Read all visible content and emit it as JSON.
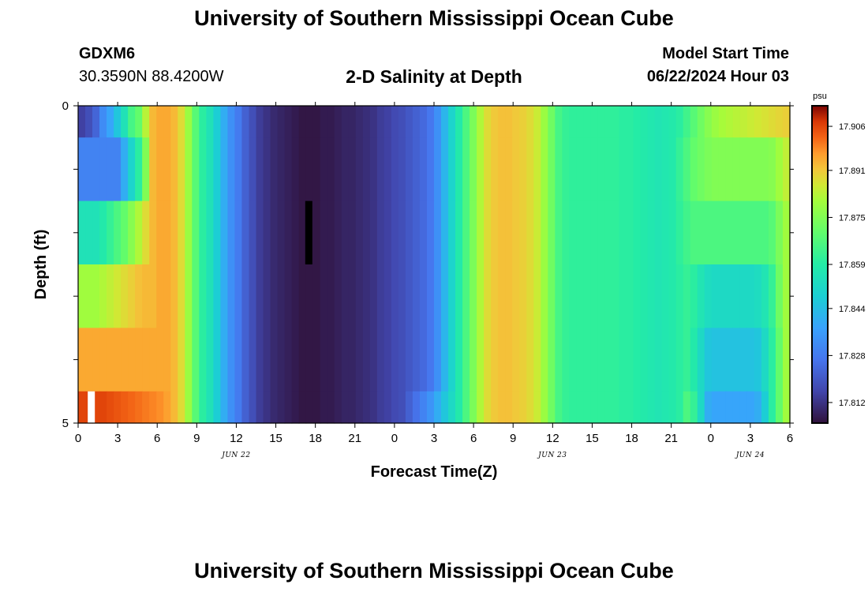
{
  "header": {
    "title": "University of Southern Mississippi Ocean Cube",
    "station": "GDXM6",
    "coords": "30.3590N  88.4200W",
    "chart_title": "2-D Salinity at Depth",
    "model_start_label": "Model Start Time",
    "model_start_value": "06/22/2024 Hour 03"
  },
  "footer": {
    "title": "University of Southern Mississippi Ocean Cube"
  },
  "chart_data": {
    "type": "heatmap",
    "title": "2-D Salinity at Depth",
    "xlabel": "Forecast Time(Z)",
    "ylabel": "Depth (ft)",
    "xlim": [
      0,
      54
    ],
    "ylim": [
      0,
      5
    ],
    "x_tick_labels": [
      "0",
      "3",
      "6",
      "9",
      "12",
      "15",
      "18",
      "21",
      "0",
      "3",
      "6",
      "9",
      "12",
      "15",
      "18",
      "21",
      "0",
      "3",
      "6"
    ],
    "x_tick_values": [
      0,
      3,
      6,
      9,
      12,
      15,
      18,
      21,
      24,
      27,
      30,
      33,
      36,
      39,
      42,
      45,
      48,
      51,
      54
    ],
    "date_labels": [
      {
        "label": "JUN 22",
        "at_hour": 12
      },
      {
        "label": "JUN 23",
        "at_hour": 36
      },
      {
        "label": "JUN 24",
        "at_hour": 51
      }
    ],
    "y_tick_labels": [
      "0",
      "5"
    ],
    "colorbar": {
      "unit": "psu",
      "min": 17.805,
      "max": 17.913,
      "tick_values": [
        17.812,
        17.828,
        17.844,
        17.859,
        17.875,
        17.891,
        17.906
      ],
      "tick_labels": [
        "17.812",
        "17.828",
        "17.844",
        "17.859",
        "17.875",
        "17.891",
        "17.906"
      ]
    },
    "depth_rows": [
      {
        "depth_ft": 0.5,
        "values": [
          17.815,
          17.818,
          17.823,
          17.832,
          17.838,
          17.846,
          17.855,
          17.865,
          17.87,
          17.883,
          17.893,
          17.895,
          17.895,
          17.893,
          17.888,
          17.879,
          17.868,
          17.86,
          17.855,
          17.848,
          17.84,
          17.833,
          17.828,
          17.822,
          17.818,
          17.814,
          17.812,
          17.81,
          17.809,
          17.808,
          17.807,
          17.806,
          17.806,
          17.806,
          17.807,
          17.807,
          17.808,
          17.809,
          17.809,
          17.81,
          17.811,
          17.812,
          17.814,
          17.815,
          17.817,
          17.818,
          17.82,
          17.822,
          17.824,
          17.827,
          17.833,
          17.842,
          17.85,
          17.858,
          17.866,
          17.874,
          17.882,
          17.888,
          17.891,
          17.892,
          17.892,
          17.891,
          17.89,
          17.888,
          17.885,
          17.879,
          17.872,
          17.865,
          17.862,
          17.861,
          17.861,
          17.861,
          17.861,
          17.861,
          17.861,
          17.861,
          17.86,
          17.86,
          17.859,
          17.858,
          17.857,
          17.856,
          17.857,
          17.858,
          17.86,
          17.864,
          17.868,
          17.872,
          17.876,
          17.879,
          17.881,
          17.882,
          17.883,
          17.884,
          17.885,
          17.886,
          17.887,
          17.888,
          17.889,
          17.89
        ]
      },
      {
        "depth_ft": 1.5,
        "values": [
          17.83,
          17.83,
          17.83,
          17.83,
          17.83,
          17.83,
          17.84,
          17.85,
          17.86,
          17.875,
          17.893,
          17.895,
          17.895,
          17.893,
          17.888,
          17.879,
          17.868,
          17.86,
          17.855,
          17.848,
          17.84,
          17.833,
          17.828,
          17.822,
          17.818,
          17.814,
          17.812,
          17.81,
          17.809,
          17.808,
          17.807,
          17.806,
          17.806,
          17.806,
          17.807,
          17.807,
          17.808,
          17.809,
          17.809,
          17.81,
          17.811,
          17.812,
          17.814,
          17.815,
          17.817,
          17.818,
          17.82,
          17.822,
          17.824,
          17.827,
          17.833,
          17.842,
          17.85,
          17.858,
          17.866,
          17.874,
          17.882,
          17.888,
          17.891,
          17.892,
          17.892,
          17.891,
          17.89,
          17.888,
          17.885,
          17.879,
          17.872,
          17.865,
          17.862,
          17.861,
          17.861,
          17.861,
          17.861,
          17.861,
          17.861,
          17.861,
          17.86,
          17.86,
          17.859,
          17.858,
          17.857,
          17.856,
          17.857,
          17.858,
          17.862,
          17.866,
          17.87,
          17.872,
          17.874,
          17.875,
          17.875,
          17.875,
          17.875,
          17.875,
          17.875,
          17.875,
          17.875,
          17.876,
          17.88,
          17.884
        ]
      },
      {
        "depth_ft": 2.5,
        "values": [
          17.855,
          17.855,
          17.855,
          17.858,
          17.862,
          17.866,
          17.87,
          17.876,
          17.882,
          17.888,
          17.893,
          17.895,
          17.895,
          17.893,
          17.888,
          17.879,
          17.868,
          17.86,
          17.855,
          17.848,
          17.84,
          17.833,
          17.828,
          17.822,
          17.818,
          17.814,
          17.812,
          17.81,
          17.809,
          17.808,
          17.807,
          17.806,
          17.806,
          17.806,
          17.807,
          17.807,
          17.808,
          17.809,
          17.809,
          17.81,
          17.811,
          17.812,
          17.814,
          17.815,
          17.817,
          17.818,
          17.82,
          17.822,
          17.824,
          17.827,
          17.833,
          17.842,
          17.85,
          17.858,
          17.866,
          17.874,
          17.882,
          17.888,
          17.891,
          17.892,
          17.892,
          17.891,
          17.89,
          17.888,
          17.885,
          17.879,
          17.872,
          17.865,
          17.862,
          17.861,
          17.861,
          17.861,
          17.861,
          17.861,
          17.861,
          17.861,
          17.86,
          17.86,
          17.859,
          17.858,
          17.857,
          17.856,
          17.857,
          17.858,
          17.861,
          17.864,
          17.866,
          17.866,
          17.866,
          17.866,
          17.866,
          17.866,
          17.866,
          17.866,
          17.866,
          17.866,
          17.866,
          17.868,
          17.874,
          17.88
        ]
      },
      {
        "depth_ft": 3.5,
        "values": [
          17.88,
          17.88,
          17.88,
          17.882,
          17.884,
          17.886,
          17.888,
          17.89,
          17.892,
          17.893,
          17.893,
          17.895,
          17.895,
          17.893,
          17.888,
          17.879,
          17.868,
          17.86,
          17.855,
          17.848,
          17.84,
          17.833,
          17.828,
          17.822,
          17.818,
          17.814,
          17.812,
          17.81,
          17.809,
          17.808,
          17.807,
          17.806,
          17.806,
          17.806,
          17.807,
          17.807,
          17.808,
          17.809,
          17.809,
          17.81,
          17.811,
          17.812,
          17.814,
          17.815,
          17.817,
          17.818,
          17.82,
          17.822,
          17.824,
          17.827,
          17.833,
          17.842,
          17.85,
          17.858,
          17.866,
          17.874,
          17.882,
          17.888,
          17.891,
          17.892,
          17.892,
          17.891,
          17.89,
          17.888,
          17.885,
          17.879,
          17.872,
          17.865,
          17.862,
          17.861,
          17.861,
          17.861,
          17.861,
          17.861,
          17.861,
          17.861,
          17.86,
          17.86,
          17.859,
          17.858,
          17.857,
          17.856,
          17.857,
          17.858,
          17.86,
          17.862,
          17.86,
          17.856,
          17.853,
          17.852,
          17.852,
          17.852,
          17.852,
          17.852,
          17.852,
          17.853,
          17.856,
          17.862,
          17.872,
          17.88
        ]
      },
      {
        "depth_ft": 4.5,
        "values": [
          17.895,
          17.895,
          17.895,
          17.895,
          17.895,
          17.895,
          17.895,
          17.895,
          17.895,
          17.895,
          17.895,
          17.895,
          17.895,
          17.893,
          17.888,
          17.879,
          17.868,
          17.86,
          17.855,
          17.848,
          17.84,
          17.833,
          17.828,
          17.822,
          17.818,
          17.814,
          17.812,
          17.81,
          17.809,
          17.808,
          17.807,
          17.806,
          17.806,
          17.806,
          17.807,
          17.807,
          17.808,
          17.809,
          17.809,
          17.81,
          17.811,
          17.812,
          17.814,
          17.815,
          17.817,
          17.818,
          17.82,
          17.822,
          17.824,
          17.827,
          17.833,
          17.842,
          17.85,
          17.858,
          17.866,
          17.874,
          17.882,
          17.888,
          17.891,
          17.892,
          17.892,
          17.891,
          17.89,
          17.888,
          17.885,
          17.879,
          17.872,
          17.865,
          17.862,
          17.861,
          17.861,
          17.861,
          17.861,
          17.861,
          17.861,
          17.861,
          17.86,
          17.86,
          17.859,
          17.858,
          17.857,
          17.856,
          17.857,
          17.858,
          17.86,
          17.862,
          17.858,
          17.852,
          17.846,
          17.845,
          17.845,
          17.845,
          17.845,
          17.845,
          17.845,
          17.846,
          17.852,
          17.86,
          17.87,
          17.88
        ]
      },
      {
        "depth_ft": 4.9,
        "values": [
          17.906,
          17.906,
          17.906,
          17.906,
          17.905,
          17.904,
          17.903,
          17.902,
          17.901,
          17.9,
          17.899,
          17.898,
          17.896,
          17.893,
          17.888,
          17.879,
          17.868,
          17.86,
          17.855,
          17.848,
          17.84,
          17.833,
          17.828,
          17.822,
          17.818,
          17.814,
          17.812,
          17.81,
          17.809,
          17.808,
          17.807,
          17.806,
          17.806,
          17.806,
          17.807,
          17.807,
          17.808,
          17.809,
          17.809,
          17.81,
          17.811,
          17.812,
          17.814,
          17.815,
          17.817,
          17.818,
          17.822,
          17.826,
          17.83,
          17.834,
          17.84,
          17.846,
          17.852,
          17.858,
          17.866,
          17.874,
          17.882,
          17.888,
          17.891,
          17.892,
          17.892,
          17.891,
          17.89,
          17.888,
          17.885,
          17.879,
          17.872,
          17.865,
          17.862,
          17.861,
          17.861,
          17.861,
          17.861,
          17.861,
          17.861,
          17.861,
          17.86,
          17.86,
          17.859,
          17.858,
          17.857,
          17.856,
          17.857,
          17.858,
          17.86,
          17.866,
          17.862,
          17.852,
          17.84,
          17.838,
          17.838,
          17.838,
          17.838,
          17.838,
          17.838,
          17.84,
          17.848,
          17.86,
          17.87,
          17.88
        ]
      }
    ],
    "annotations": [
      {
        "type": "marker",
        "color": "#000000",
        "hour": 17.5,
        "depth_from": 1.5,
        "depth_to": 2.5
      },
      {
        "type": "marker",
        "color": "#ffffff",
        "hour": 1.0,
        "depth_from": 4.5,
        "depth_to": 5.0
      }
    ]
  }
}
